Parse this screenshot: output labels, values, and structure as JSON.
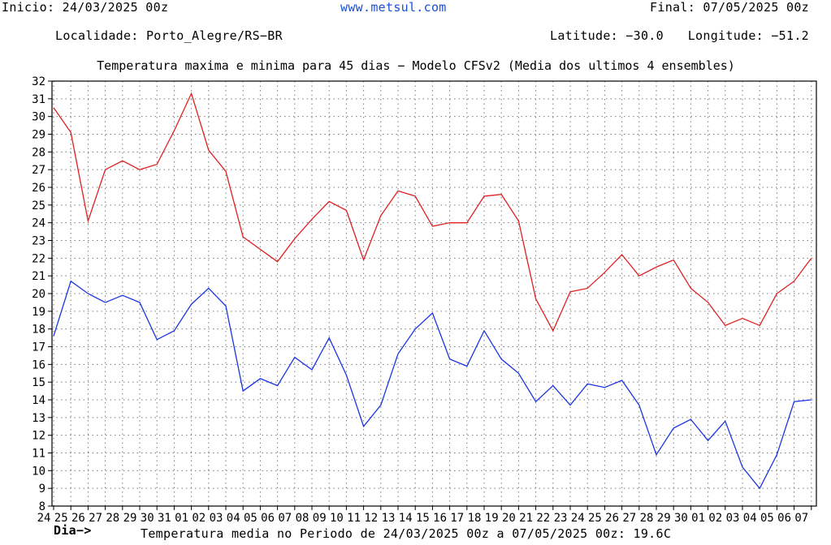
{
  "header": {
    "start_label": "Inicio: 24/03/2025 00z",
    "site_url": "www.metsul.com",
    "end_label": "Final: 07/05/2025 00z",
    "location_label": "Localidade: Porto_Alegre/RS−BR",
    "latitude_label": "Latitude: −30.0",
    "longitude_label": "Longitude: −51.2"
  },
  "footer": {
    "axis_label": "Dia−>",
    "mean_label": "Temperatura media no Periodo de 24/03/2025 00z a 07/05/2025 00z: 19.6C"
  },
  "colors": {
    "max": "#e02020",
    "min": "#1a35e0",
    "grid": "#7a7a7a",
    "axis": "#000000"
  },
  "chart_data": {
    "type": "line",
    "title": "Temperatura maxima e minima para 45 dias − Modelo CFSv2 (Media dos ultimos 4 ensembles)",
    "xlabel": "Dia−>",
    "ylabel": "",
    "ylim": [
      8,
      32
    ],
    "yticks": [
      8,
      9,
      10,
      11,
      12,
      13,
      14,
      15,
      16,
      17,
      18,
      19,
      20,
      21,
      22,
      23,
      24,
      25,
      26,
      27,
      28,
      29,
      30,
      31,
      32
    ],
    "grid": true,
    "categories": [
      "24",
      "25",
      "26",
      "27",
      "28",
      "29",
      "30",
      "31",
      "01",
      "02",
      "03",
      "04",
      "05",
      "06",
      "07",
      "08",
      "09",
      "10",
      "11",
      "12",
      "13",
      "14",
      "15",
      "16",
      "17",
      "18",
      "19",
      "20",
      "21",
      "22",
      "23",
      "24",
      "25",
      "26",
      "27",
      "28",
      "29",
      "30",
      "01",
      "02",
      "03",
      "04",
      "05",
      "06",
      "07"
    ],
    "series": [
      {
        "color": "#e02020",
        "x": [
          0,
          1,
          2,
          3,
          4,
          5,
          6,
          7,
          8,
          9,
          10,
          11,
          12,
          13,
          14,
          15,
          16,
          17,
          18,
          19,
          20,
          21,
          22,
          23,
          24,
          25,
          26,
          27,
          28,
          29,
          30,
          31,
          32,
          33,
          34,
          35,
          36,
          37,
          38,
          39,
          40,
          41,
          42,
          43,
          44
        ],
        "values": [
          30.5,
          29.1,
          24.1,
          27.0,
          27.5,
          27.0,
          27.3,
          29.2,
          31.3,
          28.1,
          26.9,
          23.2,
          22.5,
          21.8,
          23.1,
          24.2,
          25.2,
          24.7,
          21.9,
          24.4,
          25.8,
          25.5,
          23.8,
          24.0,
          24.0,
          25.5,
          25.6,
          24.1,
          19.7,
          17.9,
          20.1,
          20.3,
          21.2,
          22.2,
          21.0,
          21.5,
          21.9,
          20.3,
          19.5,
          18.2,
          18.6,
          18.2,
          20.0,
          20.7,
          22.0
        ]
      },
      {
        "color": "#1a35e0",
        "x": [
          0,
          1,
          2,
          3,
          4,
          5,
          6,
          7,
          8,
          9,
          10,
          11,
          12,
          13,
          14,
          15,
          16,
          17,
          18,
          19,
          20,
          21,
          22,
          23,
          24,
          25,
          26,
          27,
          28,
          29,
          30,
          31,
          32,
          33,
          34,
          35,
          36,
          37,
          38,
          39,
          40,
          41,
          42,
          43,
          44
        ],
        "values": [
          17.6,
          20.7,
          20.0,
          19.5,
          19.9,
          19.5,
          17.4,
          17.9,
          19.4,
          20.3,
          19.3,
          14.5,
          15.2,
          14.8,
          16.4,
          15.7,
          17.5,
          15.4,
          12.5,
          13.7,
          16.6,
          18.0,
          18.9,
          16.3,
          15.9,
          17.9,
          16.3,
          15.5,
          13.9,
          14.8,
          13.7,
          14.9,
          14.7,
          15.1,
          13.7,
          10.9,
          12.4,
          12.9,
          11.7,
          12.8,
          10.2,
          9.0,
          10.9,
          13.9,
          14.0
        ]
      }
    ]
  }
}
